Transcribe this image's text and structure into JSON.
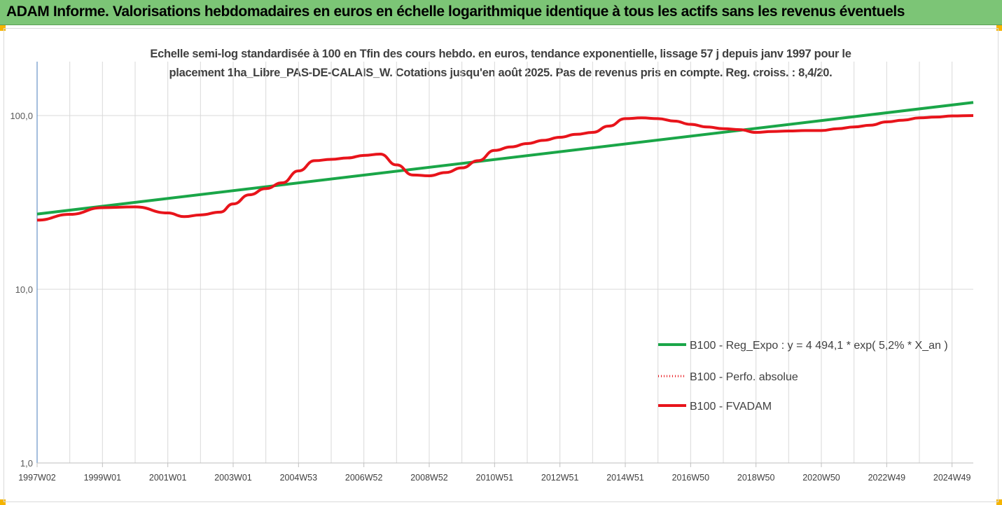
{
  "banner": {
    "title": "ADAM Informe. Valorisations hebdomadaires en euros en échelle logarithmique identique à tous les actifs sans les revenus éventuels"
  },
  "colors": {
    "banner_bg": "#7cc576",
    "corner_accent": "#f5b400",
    "regression": "#1aa648",
    "fvadam": "#e8141b",
    "perfo": "#e8141b",
    "grid": "#d9d9d9"
  },
  "chart_data": {
    "type": "line",
    "subtitle_line1": "Echelle semi-log standardisée à 100 en Tfin des cours hebdo. en euros, tendance exponentielle, lissage 57 j depuis janv 1997 pour le",
    "subtitle_line2": "placement 1ha_Libre_PAS-DE-CALAIS_W. Cotations jusqu'en août 2025. Pas de revenus pris en compte. Reg. croiss. : 8,4/20.",
    "y_scale": "log",
    "ylim": [
      1,
      200
    ],
    "y_ticks": [
      "1,0",
      "10,0",
      "100,0"
    ],
    "x_range": [
      1997.0,
      2025.65
    ],
    "x_ticks": [
      {
        "x": 1997.0,
        "label": "1997W02"
      },
      {
        "x": 1999.0,
        "label": "1999W01"
      },
      {
        "x": 2001.0,
        "label": "2001W01"
      },
      {
        "x": 2003.0,
        "label": "2003W01"
      },
      {
        "x": 2005.0,
        "label": "2004W53"
      },
      {
        "x": 2007.0,
        "label": "2006W52"
      },
      {
        "x": 2009.0,
        "label": "2008W52"
      },
      {
        "x": 2011.0,
        "label": "2010W51"
      },
      {
        "x": 2013.0,
        "label": "2012W51"
      },
      {
        "x": 2015.0,
        "label": "2014W51"
      },
      {
        "x": 2017.0,
        "label": "2016W50"
      },
      {
        "x": 2019.0,
        "label": "2018W50"
      },
      {
        "x": 2021.0,
        "label": "2020W50"
      },
      {
        "x": 2023.0,
        "label": "2022W49"
      },
      {
        "x": 2025.0,
        "label": "2024W49"
      }
    ],
    "grid": "vertical",
    "legend_position": "right",
    "series": [
      {
        "name": "B100 - Reg_Expo : y = 4 494,1 * exp( 5,2% *  X_an )",
        "style": "solid-green",
        "x": [
          1997.0,
          2025.65
        ],
        "y": [
          27.1,
          119.0
        ]
      },
      {
        "name": "B100 - Perfo. absolue",
        "style": "dotted-red",
        "x": [
          1997.0,
          1998.0,
          1999.0,
          2000.0,
          2001.0,
          2001.5,
          2002.0,
          2002.6,
          2003.0,
          2003.5,
          2004.0,
          2004.5,
          2005.0,
          2005.5,
          2006.0,
          2006.5,
          2007.0,
          2007.5,
          2008.0,
          2008.5,
          2009.0,
          2009.5,
          2010.0,
          2010.5,
          2011.0,
          2011.5,
          2012.0,
          2012.5,
          2013.0,
          2013.5,
          2014.0,
          2014.5,
          2015.0,
          2015.5,
          2016.0,
          2016.5,
          2017.0,
          2017.5,
          2018.0,
          2018.5,
          2019.0,
          2019.5,
          2020.0,
          2020.5,
          2021.0,
          2021.5,
          2022.0,
          2022.5,
          2023.0,
          2023.5,
          2024.0,
          2024.5,
          2025.0,
          2025.65
        ],
        "y": [
          25.0,
          27.0,
          29.5,
          29.8,
          27.5,
          26.2,
          26.8,
          27.8,
          31.0,
          35.0,
          38.0,
          41.0,
          48.0,
          55.0,
          56.0,
          57.0,
          59.0,
          60.0,
          52.0,
          45.5,
          45.0,
          47.0,
          50.0,
          55.0,
          63.0,
          66.0,
          69.0,
          72.0,
          75.0,
          78.0,
          80.0,
          87.0,
          96.0,
          97.0,
          96.0,
          93.0,
          89.0,
          86.0,
          84.0,
          83.0,
          80.0,
          81.0,
          81.5,
          82.0,
          82.0,
          84.0,
          86.0,
          88.0,
          92.0,
          94.0,
          97.0,
          98.0,
          99.5,
          100.0
        ]
      },
      {
        "name": "B100 - FVADAM",
        "style": "solid-red",
        "x": [
          1997.0,
          1998.0,
          1999.0,
          2000.0,
          2001.0,
          2001.5,
          2002.0,
          2002.6,
          2003.0,
          2003.5,
          2004.0,
          2004.5,
          2005.0,
          2005.5,
          2006.0,
          2006.5,
          2007.0,
          2007.5,
          2008.0,
          2008.5,
          2009.0,
          2009.5,
          2010.0,
          2010.5,
          2011.0,
          2011.5,
          2012.0,
          2012.5,
          2013.0,
          2013.5,
          2014.0,
          2014.5,
          2015.0,
          2015.5,
          2016.0,
          2016.5,
          2017.0,
          2017.5,
          2018.0,
          2018.5,
          2019.0,
          2019.5,
          2020.0,
          2020.5,
          2021.0,
          2021.5,
          2022.0,
          2022.5,
          2023.0,
          2023.5,
          2024.0,
          2024.5,
          2025.0,
          2025.65
        ],
        "y": [
          25.0,
          27.0,
          29.5,
          29.8,
          27.5,
          26.2,
          26.8,
          27.8,
          31.0,
          35.0,
          38.0,
          41.0,
          48.0,
          55.0,
          56.0,
          57.0,
          59.0,
          60.0,
          52.0,
          45.5,
          45.0,
          47.0,
          50.0,
          55.0,
          63.0,
          66.0,
          69.0,
          72.0,
          75.0,
          78.0,
          80.0,
          87.0,
          96.0,
          97.0,
          96.0,
          93.0,
          89.0,
          86.0,
          84.0,
          83.0,
          80.0,
          81.0,
          81.5,
          82.0,
          82.0,
          84.0,
          86.0,
          88.0,
          92.0,
          94.0,
          97.0,
          98.0,
          99.5,
          100.0
        ]
      }
    ]
  }
}
